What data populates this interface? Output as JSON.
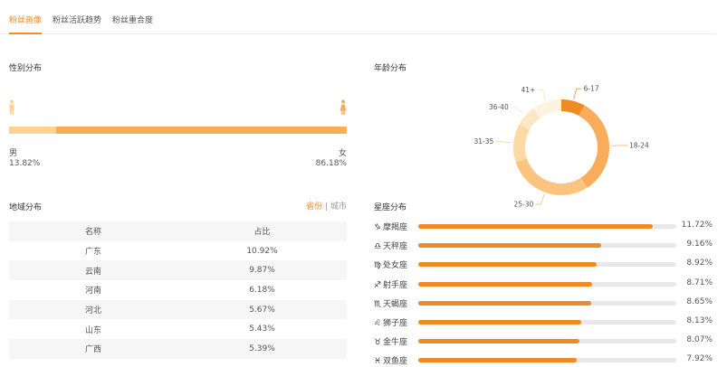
{
  "tabs": [
    {
      "label": "粉丝画像",
      "active": true
    },
    {
      "label": "粉丝活跃趋势"
    },
    {
      "label": "粉丝重合度"
    }
  ],
  "gender": {
    "title": "性别分布",
    "male_label": "男",
    "male_pct": "13.82%",
    "male_value": 13.82,
    "female_label": "女",
    "female_pct": "86.18%",
    "female_value": 86.18
  },
  "region": {
    "title": "地域分布",
    "switch": {
      "province": "省份",
      "sep": "|",
      "city": "城市"
    },
    "headers": [
      "名称",
      "占比"
    ],
    "rows": [
      [
        "广东",
        "10.92%"
      ],
      [
        "云南",
        "9.87%"
      ],
      [
        "河南",
        "6.18%"
      ],
      [
        "河北",
        "5.67%"
      ],
      [
        "山东",
        "5.43%"
      ],
      [
        "广西",
        "5.39%"
      ]
    ]
  },
  "age": {
    "title": "年龄分布"
  },
  "chart_data": {
    "type": "pie",
    "title": "年龄分布",
    "donut": true,
    "categories": [
      "6-17",
      "18-24",
      "25-30",
      "31-35",
      "36-40",
      "41+"
    ],
    "values": [
      8,
      33,
      29,
      13,
      7,
      10
    ],
    "colors": [
      "#f08a24",
      "#f9ac5a",
      "#fdc47f",
      "#fdd9a6",
      "#fde6c4",
      "#fef3e0"
    ]
  },
  "zodiac": {
    "title": "星座分布",
    "scale_max": 12.9,
    "items": [
      {
        "symbol": "♑",
        "name": "摩羯座",
        "pct": "11.72%",
        "value": 11.72
      },
      {
        "symbol": "♎",
        "name": "天秤座",
        "pct": "9.16%",
        "value": 9.16
      },
      {
        "symbol": "♍",
        "name": "处女座",
        "pct": "8.92%",
        "value": 8.92
      },
      {
        "symbol": "♐",
        "name": "射手座",
        "pct": "8.71%",
        "value": 8.71
      },
      {
        "symbol": "♏",
        "name": "天蝎座",
        "pct": "8.65%",
        "value": 8.65
      },
      {
        "symbol": "♌",
        "name": "狮子座",
        "pct": "8.13%",
        "value": 8.13
      },
      {
        "symbol": "♉",
        "name": "金牛座",
        "pct": "8.07%",
        "value": 8.07
      },
      {
        "symbol": "♓",
        "name": "双鱼座",
        "pct": "7.92%",
        "value": 7.92
      }
    ]
  }
}
